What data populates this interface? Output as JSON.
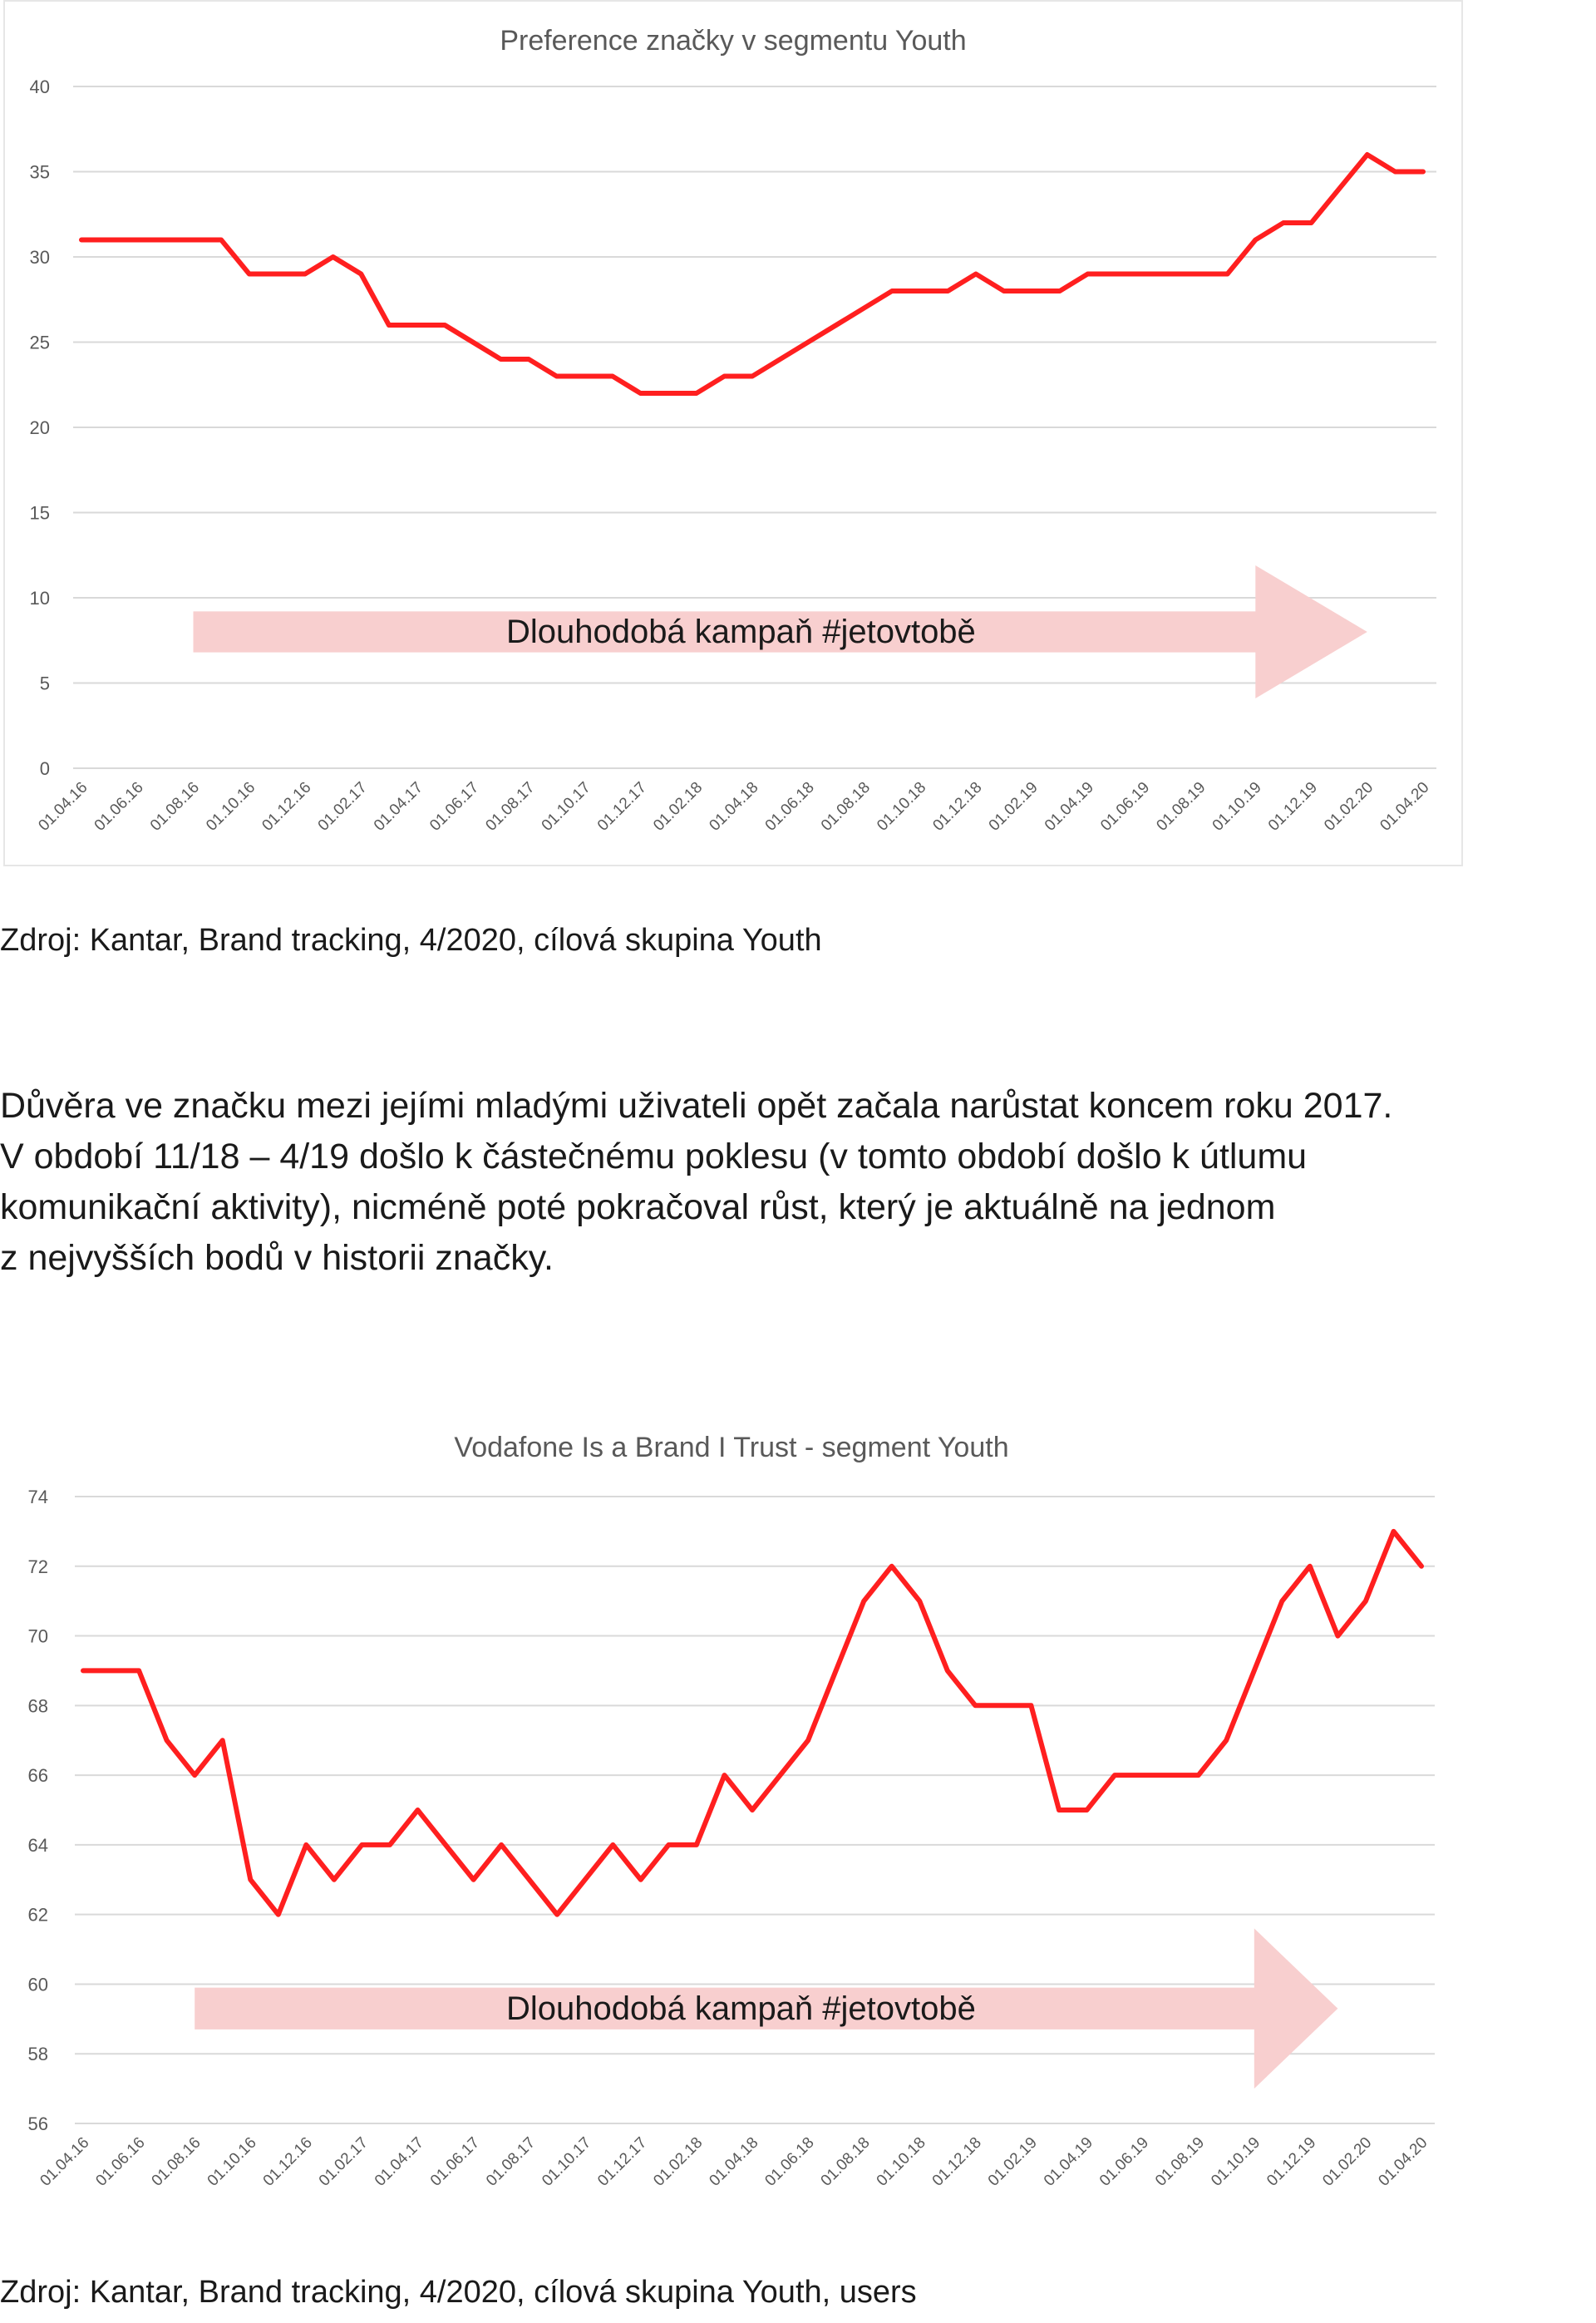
{
  "chart_data": [
    {
      "type": "line",
      "title": "Preference značky v segmentu Youth",
      "xlabel": "",
      "ylabel": "",
      "ylim": [
        0,
        40
      ],
      "yticks": [
        0,
        5,
        10,
        15,
        20,
        25,
        30,
        35,
        40
      ],
      "x_tick_labels": [
        "01.04.16",
        "01.06.16",
        "01.08.16",
        "01.10.16",
        "01.12.16",
        "01.02.17",
        "01.04.17",
        "01.06.17",
        "01.08.17",
        "01.10.17",
        "01.12.17",
        "01.02.18",
        "01.04.18",
        "01.06.18",
        "01.08.18",
        "01.10.18",
        "01.12.18",
        "01.02.19",
        "01.04.19",
        "01.06.19",
        "01.08.19",
        "01.10.19",
        "01.12.19",
        "01.02.20",
        "01.04.20"
      ],
      "grid": true,
      "series": [
        {
          "color": "#ff1f1f",
          "x": [
            "01.04.16",
            "01.05.16",
            "01.06.16",
            "01.07.16",
            "01.08.16",
            "01.09.16",
            "01.10.16",
            "01.11.16",
            "01.12.16",
            "01.01.17",
            "01.02.17",
            "01.03.17",
            "01.04.17",
            "01.05.17",
            "01.06.17",
            "01.07.17",
            "01.08.17",
            "01.09.17",
            "01.10.17",
            "01.11.17",
            "01.12.17",
            "01.01.18",
            "01.02.18",
            "01.03.18",
            "01.04.18",
            "01.05.18",
            "01.06.18",
            "01.07.18",
            "01.08.18",
            "01.09.18",
            "01.10.18",
            "01.11.18",
            "01.12.18",
            "01.01.19",
            "01.02.19",
            "01.03.19",
            "01.04.19",
            "01.05.19",
            "01.06.19",
            "01.07.19",
            "01.08.19",
            "01.09.19",
            "01.10.19",
            "01.11.19",
            "01.12.19",
            "01.01.20",
            "01.02.20",
            "01.03.20",
            "01.04.20"
          ],
          "values": [
            31,
            31,
            31,
            31,
            31,
            31,
            29,
            29,
            29,
            30,
            29,
            26,
            26,
            26,
            25,
            24,
            24,
            23,
            23,
            23,
            22,
            22,
            22,
            23,
            23,
            24,
            25,
            26,
            27,
            28,
            28,
            28,
            29,
            28,
            28,
            28,
            29,
            29,
            29,
            29,
            29,
            29,
            31,
            32,
            32,
            34,
            36,
            35,
            35
          ]
        }
      ],
      "annotation": {
        "type": "arrow",
        "label": "Dlouhodobá kampaň #jetovtobě",
        "color": "#f8cfcf",
        "x_start": "01.08.16",
        "x_end": "01.02.20",
        "y_center": 8,
        "y_half_height": 1.2,
        "head_half_height": 3.9,
        "head_start": "01.10.19"
      }
    },
    {
      "type": "line",
      "title": "Vodafone Is a Brand I Trust - segment Youth",
      "xlabel": "",
      "ylabel": "",
      "ylim": [
        56,
        74
      ],
      "yticks": [
        56,
        58,
        60,
        62,
        64,
        66,
        68,
        70,
        72,
        74
      ],
      "x_tick_labels": [
        "01.04.16",
        "01.06.16",
        "01.08.16",
        "01.10.16",
        "01.12.16",
        "01.02.17",
        "01.04.17",
        "01.06.17",
        "01.08.17",
        "01.10.17",
        "01.12.17",
        "01.02.18",
        "01.04.18",
        "01.06.18",
        "01.08.18",
        "01.10.18",
        "01.12.18",
        "01.02.19",
        "01.04.19",
        "01.06.19",
        "01.08.19",
        "01.10.19",
        "01.12.19",
        "01.02.20",
        "01.04.20"
      ],
      "grid": true,
      "series": [
        {
          "color": "#ff1f1f",
          "x": [
            "01.04.16",
            "01.05.16",
            "01.06.16",
            "01.07.16",
            "01.08.16",
            "01.09.16",
            "01.10.16",
            "01.11.16",
            "01.12.16",
            "01.01.17",
            "01.02.17",
            "01.03.17",
            "01.04.17",
            "01.05.17",
            "01.06.17",
            "01.07.17",
            "01.08.17",
            "01.09.17",
            "01.10.17",
            "01.11.17",
            "01.12.17",
            "01.01.18",
            "01.02.18",
            "01.03.18",
            "01.04.18",
            "01.05.18",
            "01.06.18",
            "01.07.18",
            "01.08.18",
            "01.09.18",
            "01.10.18",
            "01.11.18",
            "01.12.18",
            "01.01.19",
            "01.02.19",
            "01.03.19",
            "01.04.19",
            "01.05.19",
            "01.06.19",
            "01.07.19",
            "01.08.19",
            "01.09.19",
            "01.10.19",
            "01.11.19",
            "01.12.19",
            "01.01.20",
            "01.02.20",
            "01.03.20",
            "01.04.20"
          ],
          "values": [
            69,
            69,
            69,
            67,
            66,
            67,
            63,
            62,
            64,
            63,
            64,
            64,
            65,
            64,
            63,
            64,
            63,
            62,
            63,
            64,
            63,
            64,
            64,
            66,
            65,
            66,
            67,
            69,
            71,
            72,
            71,
            69,
            68,
            68,
            68,
            65,
            65,
            66,
            66,
            66,
            66,
            67,
            69,
            71,
            72,
            70,
            71,
            73,
            72
          ]
        }
      ],
      "annotation": {
        "type": "arrow",
        "label": "Dlouhodobá kampaň #jetovtobě",
        "color": "#f8cfcf",
        "x_start": "01.08.16",
        "x_end": "01.01.20",
        "y_center": 59.3,
        "y_half_height": 0.6,
        "head_half_height": 2.3,
        "head_start": "01.10.19"
      }
    }
  ],
  "sources": {
    "chart1": "Zdroj: Kantar, Brand tracking, 4/2020, cílová skupina Youth",
    "chart2": "Zdroj: Kantar, Brand tracking, 4/2020, cílová skupina Youth, users"
  },
  "body_text": {
    "lines": [
      "Důvěra ve značku mezi jejími mladými uživateli opět začala narůstat koncem roku 2017.",
      "V období 11/18 – 4/19 došlo k částečnému poklesu (v tomto období došlo k útlumu",
      "komunikační aktivity), nicméně poté pokračoval růst, který je aktuálně na jednom",
      "z nejvyšších bodů v historii značky."
    ]
  }
}
